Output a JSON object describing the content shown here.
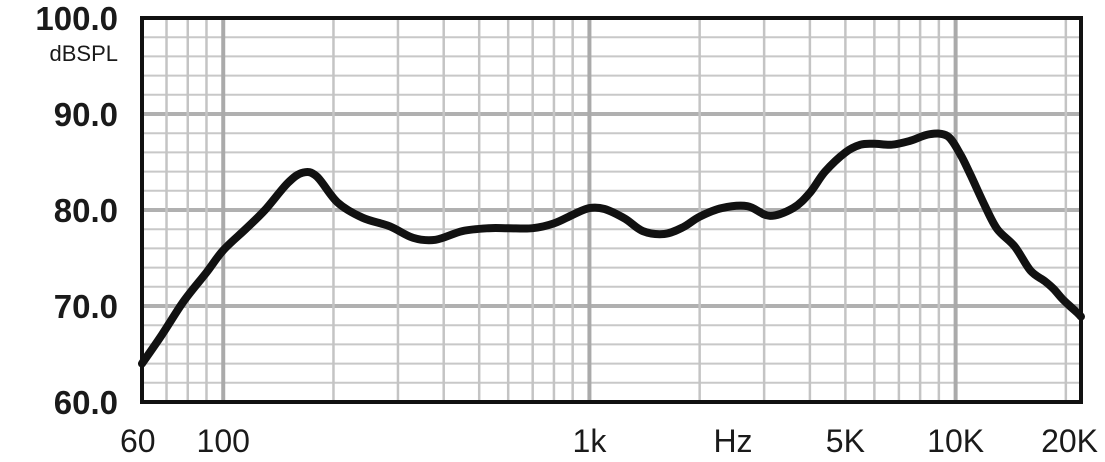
{
  "chart_data": {
    "type": "line",
    "title": "",
    "xlabel": "Hz",
    "ylabel": "dBSPL",
    "x_scale": "log",
    "xlim": [
      60,
      22000
    ],
    "ylim": [
      60,
      100
    ],
    "grid": true,
    "y_ticks": [
      {
        "value": 100,
        "label": "100.0"
      },
      {
        "value": 90,
        "label": "90.0"
      },
      {
        "value": 80,
        "label": "80.0"
      },
      {
        "value": 70,
        "label": "70.0"
      },
      {
        "value": 60,
        "label": "60.0"
      }
    ],
    "x_ticks": [
      {
        "value": 60,
        "label": "60"
      },
      {
        "value": 100,
        "label": "100"
      },
      {
        "value": 1000,
        "label": "1k"
      },
      {
        "value": 5000,
        "label": "5K"
      },
      {
        "value": 10000,
        "label": "10K"
      },
      {
        "value": 20000,
        "label": "20K"
      }
    ],
    "series": [
      {
        "color": "#111111",
        "x": [
          60,
          68,
          78,
          90,
          100,
          115,
          130,
          150,
          165,
          180,
          205,
          240,
          285,
          330,
          380,
          450,
          530,
          600,
          700,
          800,
          900,
          1000,
          1100,
          1250,
          1400,
          1600,
          1800,
          2000,
          2300,
          2700,
          3100,
          3600,
          4000,
          4400,
          5000,
          5500,
          6000,
          6700,
          7500,
          8500,
          9500,
          10300,
          11000,
          12000,
          13000,
          14500,
          16000,
          17500,
          18500,
          19500,
          20500,
          21500,
          22000
        ],
        "y": [
          64,
          67,
          70.5,
          73.5,
          75.8,
          78,
          80,
          82.8,
          83.9,
          83.5,
          80.8,
          79.2,
          78.3,
          77.1,
          76.9,
          77.8,
          78.1,
          78.1,
          78.1,
          78.6,
          79.5,
          80.2,
          80.1,
          79.1,
          77.8,
          77.5,
          78.2,
          79.3,
          80.2,
          80.4,
          79.4,
          80.2,
          81.8,
          84,
          86,
          86.8,
          86.9,
          86.8,
          87.2,
          87.9,
          87.7,
          85.8,
          83.6,
          80.5,
          78,
          76.2,
          73.7,
          72.6,
          71.8,
          70.8,
          70,
          69.3,
          68.9
        ]
      }
    ]
  }
}
